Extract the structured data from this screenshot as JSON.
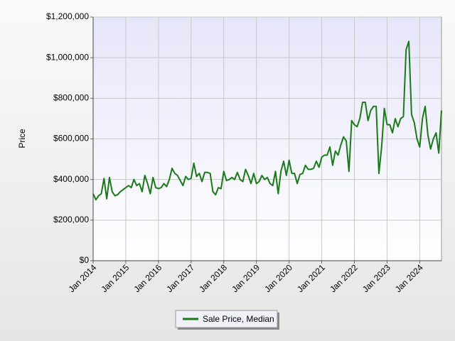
{
  "chart_data": {
    "type": "line",
    "y_label": "Price",
    "x": [
      "2014-01",
      "2014-02",
      "2014-03",
      "2014-04",
      "2014-05",
      "2014-06",
      "2014-07",
      "2014-08",
      "2014-09",
      "2014-10",
      "2014-11",
      "2014-12",
      "2015-01",
      "2015-02",
      "2015-03",
      "2015-04",
      "2015-05",
      "2015-06",
      "2015-07",
      "2015-08",
      "2015-09",
      "2015-10",
      "2015-11",
      "2015-12",
      "2016-01",
      "2016-02",
      "2016-03",
      "2016-04",
      "2016-05",
      "2016-06",
      "2016-07",
      "2016-08",
      "2016-09",
      "2016-10",
      "2016-11",
      "2016-12",
      "2017-01",
      "2017-02",
      "2017-03",
      "2017-04",
      "2017-05",
      "2017-06",
      "2017-07",
      "2017-08",
      "2017-09",
      "2017-10",
      "2017-11",
      "2017-12",
      "2018-01",
      "2018-02",
      "2018-03",
      "2018-04",
      "2018-05",
      "2018-06",
      "2018-07",
      "2018-08",
      "2018-09",
      "2018-10",
      "2018-11",
      "2018-12",
      "2019-01",
      "2019-02",
      "2019-03",
      "2019-04",
      "2019-05",
      "2019-06",
      "2019-07",
      "2019-08",
      "2019-09",
      "2019-10",
      "2019-11",
      "2019-12",
      "2020-01",
      "2020-02",
      "2020-03",
      "2020-04",
      "2020-05",
      "2020-06",
      "2020-07",
      "2020-08",
      "2020-09",
      "2020-10",
      "2020-11",
      "2020-12",
      "2021-01",
      "2021-02",
      "2021-03",
      "2021-04",
      "2021-05",
      "2021-06",
      "2021-07",
      "2021-08",
      "2021-09",
      "2021-10",
      "2021-11",
      "2021-12",
      "2022-01",
      "2022-02",
      "2022-03",
      "2022-04",
      "2022-05",
      "2022-06",
      "2022-07",
      "2022-08",
      "2022-09",
      "2022-10",
      "2022-11",
      "2022-12",
      "2023-01",
      "2023-02",
      "2023-03",
      "2023-04",
      "2023-05",
      "2023-06",
      "2023-07",
      "2023-08",
      "2023-09",
      "2023-10",
      "2023-11",
      "2023-12",
      "2024-01",
      "2024-02",
      "2024-03",
      "2024-04",
      "2024-05",
      "2024-06",
      "2024-07",
      "2024-08",
      "2024-09"
    ],
    "series": [
      {
        "name": "Sale Price, Median",
        "color": "#1a7a1a",
        "values": [
          330000,
          300000,
          320000,
          330000,
          405000,
          305000,
          410000,
          340000,
          320000,
          325000,
          340000,
          350000,
          360000,
          370000,
          360000,
          400000,
          370000,
          380000,
          340000,
          420000,
          380000,
          330000,
          410000,
          360000,
          355000,
          360000,
          380000,
          365000,
          400000,
          455000,
          430000,
          420000,
          395000,
          370000,
          415000,
          400000,
          405000,
          480000,
          415000,
          430000,
          390000,
          435000,
          435000,
          430000,
          340000,
          325000,
          360000,
          355000,
          440000,
          395000,
          400000,
          410000,
          400000,
          435000,
          400000,
          390000,
          450000,
          420000,
          380000,
          430000,
          380000,
          390000,
          420000,
          400000,
          410000,
          380000,
          370000,
          440000,
          330000,
          440000,
          490000,
          420000,
          495000,
          430000,
          430000,
          380000,
          425000,
          430000,
          470000,
          450000,
          450000,
          455000,
          490000,
          460000,
          510000,
          520000,
          520000,
          560000,
          470000,
          540000,
          520000,
          570000,
          610000,
          590000,
          440000,
          690000,
          670000,
          660000,
          700000,
          780000,
          780000,
          690000,
          740000,
          760000,
          760000,
          430000,
          560000,
          750000,
          670000,
          670000,
          630000,
          700000,
          660000,
          700000,
          710000,
          1040000,
          1080000,
          720000,
          680000,
          600000,
          560000,
          700000,
          760000,
          620000,
          550000,
          600000,
          630000,
          530000,
          740000
        ]
      }
    ],
    "xlim": [
      "2014-01",
      "2024-09"
    ],
    "xticks": [
      {
        "value": "2014-01",
        "label": "Jan 2014"
      },
      {
        "value": "2015-01",
        "label": "Jan 2015"
      },
      {
        "value": "2016-01",
        "label": "Jan 2016"
      },
      {
        "value": "2017-01",
        "label": "Jan 2017"
      },
      {
        "value": "2018-01",
        "label": "Jan 2018"
      },
      {
        "value": "2019-01",
        "label": "Jan 2019"
      },
      {
        "value": "2020-01",
        "label": "Jan 2020"
      },
      {
        "value": "2021-01",
        "label": "Jan 2021"
      },
      {
        "value": "2022-01",
        "label": "Jan 2022"
      },
      {
        "value": "2023-01",
        "label": "Jan 2023"
      },
      {
        "value": "2024-01",
        "label": "Jan 2024"
      }
    ],
    "ylim": [
      0,
      1200000
    ],
    "yticks": [
      {
        "value": 0,
        "label": "$0"
      },
      {
        "value": 200000,
        "label": "$200,000"
      },
      {
        "value": 400000,
        "label": "$400,000"
      },
      {
        "value": 600000,
        "label": "$600,000"
      },
      {
        "value": 800000,
        "label": "$800,000"
      },
      {
        "value": 1000000,
        "label": "$1,000,000"
      },
      {
        "value": 1200000,
        "label": "$1,200,000"
      }
    ],
    "grid": true,
    "legend": "bottom"
  }
}
